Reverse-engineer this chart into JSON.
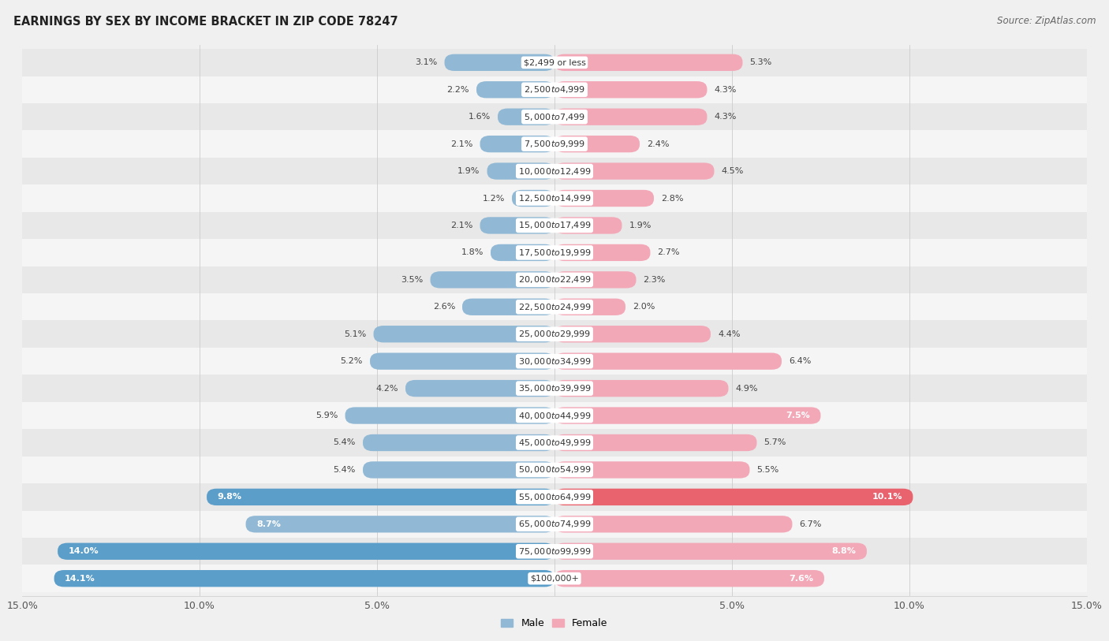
{
  "title": "EARNINGS BY SEX BY INCOME BRACKET IN ZIP CODE 78247",
  "source": "Source: ZipAtlas.com",
  "categories": [
    "$2,499 or less",
    "$2,500 to $4,999",
    "$5,000 to $7,499",
    "$7,500 to $9,999",
    "$10,000 to $12,499",
    "$12,500 to $14,999",
    "$15,000 to $17,499",
    "$17,500 to $19,999",
    "$20,000 to $22,499",
    "$22,500 to $24,999",
    "$25,000 to $29,999",
    "$30,000 to $34,999",
    "$35,000 to $39,999",
    "$40,000 to $44,999",
    "$45,000 to $49,999",
    "$50,000 to $54,999",
    "$55,000 to $64,999",
    "$65,000 to $74,999",
    "$75,000 to $99,999",
    "$100,000+"
  ],
  "male_values": [
    3.1,
    2.2,
    1.6,
    2.1,
    1.9,
    1.2,
    2.1,
    1.8,
    3.5,
    2.6,
    5.1,
    5.2,
    4.2,
    5.9,
    5.4,
    5.4,
    9.8,
    8.7,
    14.0,
    14.1
  ],
  "female_values": [
    5.3,
    4.3,
    4.3,
    2.4,
    4.5,
    2.8,
    1.9,
    2.7,
    2.3,
    2.0,
    4.4,
    6.4,
    4.9,
    7.5,
    5.7,
    5.5,
    10.1,
    6.7,
    8.8,
    7.6
  ],
  "male_color": "#91b9d5",
  "female_color": "#f3a8b8",
  "male_highlight_color": "#5b9ec9",
  "female_highlight_color": "#e8636e",
  "highlight_threshold": 9.0,
  "row_color_odd": "#e8e8e8",
  "row_color_even": "#f5f5f5",
  "background_color": "#f0f0f0",
  "x_axis_max": 15.0,
  "male_label": "Male",
  "female_label": "Female",
  "title_fontsize": 10.5,
  "source_fontsize": 8.5,
  "label_fontsize": 9,
  "category_fontsize": 8,
  "value_fontsize": 8,
  "inside_value_threshold": 7.0
}
